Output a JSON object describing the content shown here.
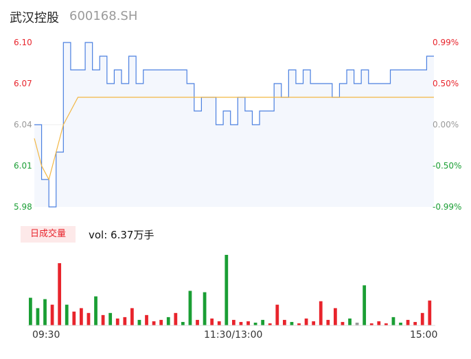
{
  "header": {
    "name": "武汉控股",
    "code": "600168.SH"
  },
  "price_axis": {
    "left_ticks": [
      "6.10",
      "6.07",
      "6.04",
      "6.01",
      "5.98"
    ],
    "right_ticks": [
      "0.99%",
      "0.50%",
      "0.00%",
      "-0.50%",
      "-0.99%"
    ]
  },
  "volume": {
    "tag": "日成交量",
    "label": "vol: 6.37万手"
  },
  "time_axis": [
    "09:30",
    "11:30/13:00",
    "15:00"
  ],
  "colors": {
    "price_line": "#4a7fe0",
    "avg_line": "#f2b642",
    "up": "#e8242c",
    "down": "#1a9e34",
    "flat": "#999999",
    "area": "#f4f7fd"
  },
  "chart_data": [
    {
      "type": "line",
      "x_range": [
        "09:30",
        "15:00"
      ],
      "ylim": [
        5.98,
        6.1
      ],
      "baseline": 6.04,
      "series": [
        {
          "role": "price",
          "values": [
            6.04,
            6.0,
            5.98,
            6.02,
            6.1,
            6.08,
            6.08,
            6.1,
            6.08,
            6.09,
            6.07,
            6.08,
            6.07,
            6.09,
            6.07,
            6.08,
            6.08,
            6.08,
            6.08,
            6.08,
            6.08,
            6.07,
            6.05,
            6.06,
            6.06,
            6.04,
            6.05,
            6.04,
            6.06,
            6.05,
            6.04,
            6.05,
            6.05,
            6.07,
            6.06,
            6.08,
            6.07,
            6.08,
            6.07,
            6.07,
            6.07,
            6.06,
            6.07,
            6.08,
            6.07,
            6.08,
            6.07,
            6.07,
            6.07,
            6.08,
            6.08,
            6.08,
            6.08,
            6.08,
            6.09,
            6.09
          ]
        },
        {
          "role": "average",
          "values": [
            6.03,
            6.01,
            6.0,
            6.02,
            6.04,
            6.05,
            6.06,
            6.06,
            6.06,
            6.06,
            6.06,
            6.06,
            6.06,
            6.06,
            6.06,
            6.06,
            6.06,
            6.06,
            6.06,
            6.06,
            6.06,
            6.06,
            6.06,
            6.06,
            6.06,
            6.06,
            6.06,
            6.06,
            6.06,
            6.06,
            6.06,
            6.06,
            6.06,
            6.06,
            6.06,
            6.06,
            6.06,
            6.06,
            6.06,
            6.06,
            6.06,
            6.06,
            6.06,
            6.06,
            6.06,
            6.06,
            6.06,
            6.06,
            6.06,
            6.06,
            6.06,
            6.06,
            6.06,
            6.06,
            6.06,
            6.06
          ]
        }
      ]
    },
    {
      "type": "bar",
      "x_range": [
        "09:30",
        "15:00"
      ],
      "values": [
        40,
        25,
        38,
        30,
        90,
        30,
        20,
        25,
        18,
        42,
        15,
        18,
        10,
        12,
        25,
        8,
        15,
        6,
        8,
        12,
        18,
        5,
        50,
        8,
        48,
        10,
        6,
        102,
        8,
        5,
        6,
        4,
        8,
        3,
        30,
        8,
        5,
        3,
        10,
        6,
        35,
        8,
        25,
        5,
        10,
        4,
        58,
        3,
        6,
        3,
        12,
        4,
        8,
        5,
        18,
        36
      ],
      "directions": [
        "down",
        "down",
        "down",
        "up",
        "up",
        "down",
        "up",
        "up",
        "up",
        "down",
        "up",
        "down",
        "up",
        "up",
        "up",
        "down",
        "up",
        "up",
        "up",
        "down",
        "up",
        "down",
        "down",
        "up",
        "down",
        "up",
        "up",
        "down",
        "up",
        "up",
        "up",
        "down",
        "down",
        "up",
        "up",
        "up",
        "down",
        "up",
        "up",
        "up",
        "up",
        "up",
        "up",
        "up",
        "down",
        "flat",
        "down",
        "up",
        "up",
        "up",
        "down",
        "down",
        "up",
        "up",
        "up",
        "up"
      ]
    }
  ]
}
